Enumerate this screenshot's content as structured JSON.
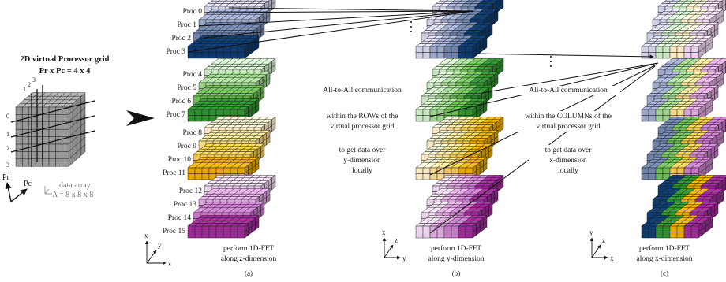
{
  "grid": {
    "title": "2D virtual Processor grid",
    "subtitle": "Pr x Pc = 4 x 4",
    "row_index": [
      "0",
      "1",
      "2",
      "3"
    ],
    "col_index": [
      "1",
      "2",
      "3"
    ],
    "axis_pr": "Pr",
    "axis_pc": "Pc",
    "array_label": "data array",
    "array_size": "A = 8 x 8 x 8"
  },
  "procs": [
    "Proc 0",
    "Proc 1",
    "Proc 2",
    "Proc 3",
    "Proc 4",
    "Proc 5",
    "Proc 6",
    "Proc 7",
    "Proc 8",
    "Proc 9",
    "Proc 10",
    "Proc 11",
    "Proc 12",
    "Proc 13",
    "Proc 14",
    "Proc 15"
  ],
  "text_ab": [
    "All-to-All communication",
    "within the ROWs of the",
    "virtual processor grid",
    "to get data over",
    "y-dimension",
    "locally"
  ],
  "text_bc": [
    "All-to-All communication",
    "within the COLUMNs of the",
    "virtual processor grid",
    "to get data over",
    "x-dimension",
    "locally"
  ],
  "panels": [
    {
      "caption": "perform 1D-FFT",
      "caption2": "along z-dimension",
      "tag": "(a)",
      "axes": {
        "vertical": "x",
        "depth": "y",
        "horizontal": "z"
      }
    },
    {
      "caption": "perform 1D-FFT",
      "caption2": "along y-dimension",
      "tag": "(b)",
      "axes": {
        "vertical": "x",
        "depth": "z",
        "horizontal": "y"
      }
    },
    {
      "caption": "perform 1D-FFT",
      "caption2": "along x-dimension",
      "tag": "(c)",
      "axes": {
        "vertical": "y",
        "depth": "z",
        "horizontal": "x"
      }
    }
  ],
  "colors": {
    "group0": [
      "#cfcfe6",
      "#9ba6c9",
      "#6f83aa",
      "#0d3b6e"
    ],
    "group1": [
      "#c9e6c3",
      "#9dd28e",
      "#6cbb55",
      "#2f8f2f"
    ],
    "group2": [
      "#fbe9c6",
      "#f6d98e",
      "#f0c54a",
      "#e6a800"
    ],
    "group3": [
      "#ecd2ec",
      "#d9a4da",
      "#c57ac8",
      "#9c2a96"
    ],
    "grid_gray": "#9a9a9a",
    "arrow": "#111111"
  }
}
